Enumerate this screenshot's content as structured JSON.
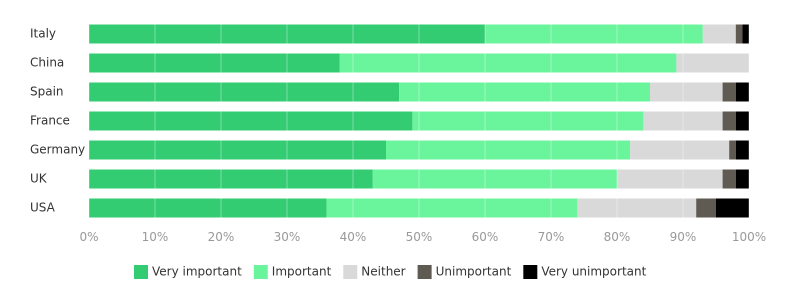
{
  "chart_data": {
    "type": "stacked_bar_horizontal",
    "categories": [
      "Italy",
      "China",
      "Spain",
      "France",
      "Germany",
      "UK",
      "USA"
    ],
    "series": [
      {
        "name": "Very important",
        "color": "#33cc73",
        "values": [
          60,
          38,
          47,
          49,
          45,
          43,
          36
        ]
      },
      {
        "name": "Important",
        "color": "#6af59d",
        "values": [
          33,
          51,
          38,
          35,
          37,
          37,
          38
        ]
      },
      {
        "name": "Neither",
        "color": "#d9d9d9",
        "values": [
          5,
          11,
          11,
          12,
          15,
          16,
          18
        ]
      },
      {
        "name": "Unimportant",
        "color": "#5f5a52",
        "values": [
          1,
          0,
          2,
          2,
          1,
          2,
          3
        ]
      },
      {
        "name": "Very unimportant",
        "color": "#000000",
        "values": [
          1,
          0,
          2,
          2,
          2,
          2,
          5
        ]
      }
    ],
    "xlim": [
      0,
      100
    ],
    "xticks": [
      {
        "value": 0,
        "label": "0%"
      },
      {
        "value": 10,
        "label": "10%"
      },
      {
        "value": 20,
        "label": "20%"
      },
      {
        "value": 30,
        "label": "30%"
      },
      {
        "value": 40,
        "label": "40%"
      },
      {
        "value": 50,
        "label": "50%"
      },
      {
        "value": 60,
        "label": "60%"
      },
      {
        "value": 70,
        "label": "70%"
      },
      {
        "value": 80,
        "label": "80%"
      },
      {
        "value": 90,
        "label": "90%"
      },
      {
        "value": 100,
        "label": "100%"
      }
    ],
    "grid": true,
    "legend": "bottom"
  }
}
